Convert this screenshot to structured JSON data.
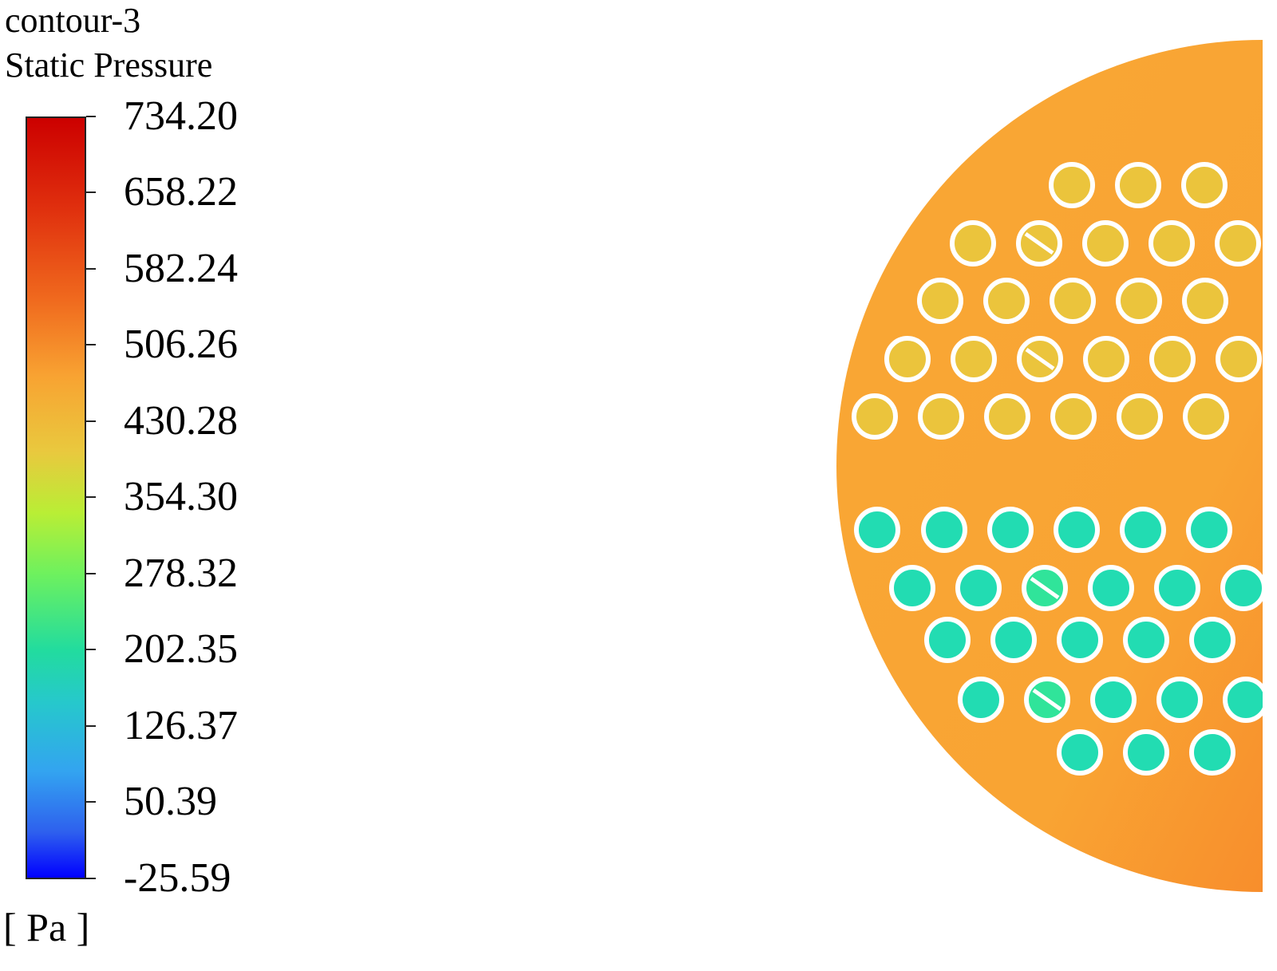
{
  "legend": {
    "title": "contour-3",
    "variable": "Static Pressure",
    "unit": "[ Pa ]",
    "ticks": [
      "734.20",
      "658.22",
      "582.24",
      "506.26",
      "430.28",
      "354.30",
      "278.32",
      "202.35",
      "126.37",
      "50.39",
      "-25.59"
    ],
    "min": -25.59,
    "max": 734.2
  },
  "colors": {
    "shell_fill": "#f9a433",
    "upper_tube_fill": "#ebc43c",
    "lower_tube_fill": "#22dcb2",
    "lower_tube_fill_variant": "#30e49a",
    "tube_outline": "#ffffff"
  },
  "contour": {
    "shell_region_pressure_level": "~540 Pa (orange)",
    "upper_tubes_pressure_level": "~470 Pa (yellow)",
    "lower_tubes_pressure_level": "~230 Pa (teal)"
  }
}
